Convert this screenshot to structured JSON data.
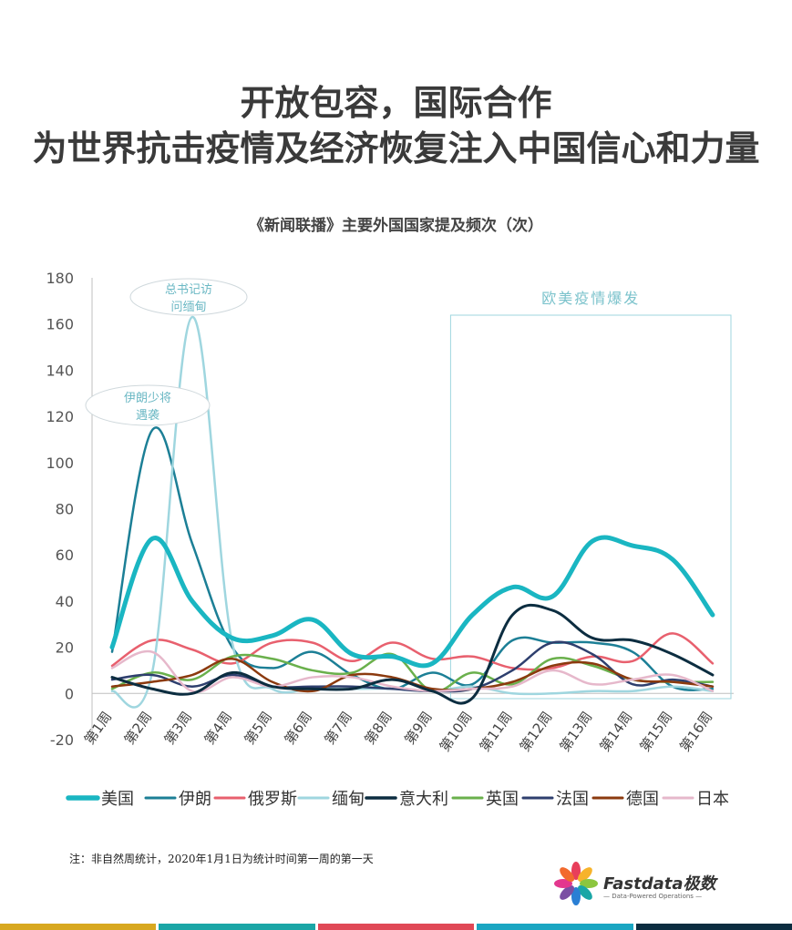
{
  "title_line1": "开放包容，国际合作",
  "title_line2": "为世界抗击疫情及经济恢复注入中国信心和力量",
  "chart_data": {
    "type": "line",
    "title": "《新闻联播》主要外国国家提及频次（次）",
    "categories": [
      "第1周",
      "第2周",
      "第3周",
      "第4周",
      "第5周",
      "第6周",
      "第7周",
      "第8周",
      "第9周",
      "第10周",
      "第11周",
      "第12周",
      "第13周",
      "第14周",
      "第15周",
      "第16周"
    ],
    "ylim": [
      -20,
      180
    ],
    "yticks": [
      -20,
      0,
      20,
      40,
      60,
      80,
      100,
      120,
      140,
      160,
      180
    ],
    "legend_position": "bottom",
    "series": [
      {
        "name": "美国",
        "color": "#1ab6c2",
        "width": 5,
        "values": [
          20,
          67,
          40,
          24,
          25,
          32,
          17,
          16,
          13,
          34,
          46,
          42,
          66,
          64,
          58,
          34
        ]
      },
      {
        "name": "伊朗",
        "color": "#1c7f96",
        "width": 2.5,
        "values": [
          18,
          114,
          65,
          20,
          11,
          18,
          8,
          2,
          9,
          4,
          23,
          22,
          22,
          18,
          3,
          2
        ]
      },
      {
        "name": "俄罗斯",
        "color": "#e8606e",
        "width": 2.5,
        "values": [
          12,
          23,
          19,
          13,
          22,
          22,
          14,
          22,
          15,
          16,
          11,
          11,
          16,
          14,
          26,
          13
        ]
      },
      {
        "name": "缅甸",
        "color": "#9fd6df",
        "width": 2.5,
        "values": [
          1,
          9,
          163,
          22,
          2,
          2,
          2,
          2,
          1,
          3,
          0,
          0,
          1,
          1,
          3,
          1
        ]
      },
      {
        "name": "意大利",
        "color": "#0c2d40",
        "width": 3,
        "values": [
          7,
          2,
          0,
          9,
          3,
          2,
          2,
          6,
          1,
          -2,
          34,
          36,
          24,
          23,
          17,
          8
        ]
      },
      {
        "name": "英国",
        "color": "#6ab04c",
        "width": 2.5,
        "values": [
          2,
          9,
          6,
          16,
          15,
          10,
          9,
          17,
          1,
          9,
          4,
          15,
          12,
          6,
          5,
          5
        ]
      },
      {
        "name": "法国",
        "color": "#2e3f6e",
        "width": 2.5,
        "values": [
          6,
          8,
          3,
          8,
          3,
          3,
          3,
          2,
          1,
          2,
          10,
          22,
          17,
          4,
          6,
          3
        ]
      },
      {
        "name": "德国",
        "color": "#8b3a0e",
        "width": 2.5,
        "values": [
          3,
          5,
          8,
          15,
          5,
          1,
          8,
          7,
          2,
          2,
          5,
          12,
          13,
          6,
          5,
          3
        ]
      },
      {
        "name": "日本",
        "color": "#e6b8cb",
        "width": 2.5,
        "values": [
          11,
          18,
          1,
          7,
          3,
          7,
          7,
          3,
          1,
          2,
          3,
          10,
          4,
          6,
          8,
          1
        ]
      }
    ],
    "annotations": [
      {
        "text1": "总书记访",
        "text2": "问缅甸"
      },
      {
        "text1": "伊朗少将",
        "text2": "遇袭"
      },
      {
        "text1": "欧美疫情爆发"
      }
    ]
  },
  "note": "注：非自然周统计，2020年1月1日为统计时间第一周的第一天",
  "logo": {
    "name": "Fastdata极数",
    "tagline": "— Data-Powered Operations —"
  },
  "footer_colors": [
    "#d8a820",
    "#1aa6a6",
    "#e04856",
    "#1aa6c2",
    "#0c2d40"
  ]
}
